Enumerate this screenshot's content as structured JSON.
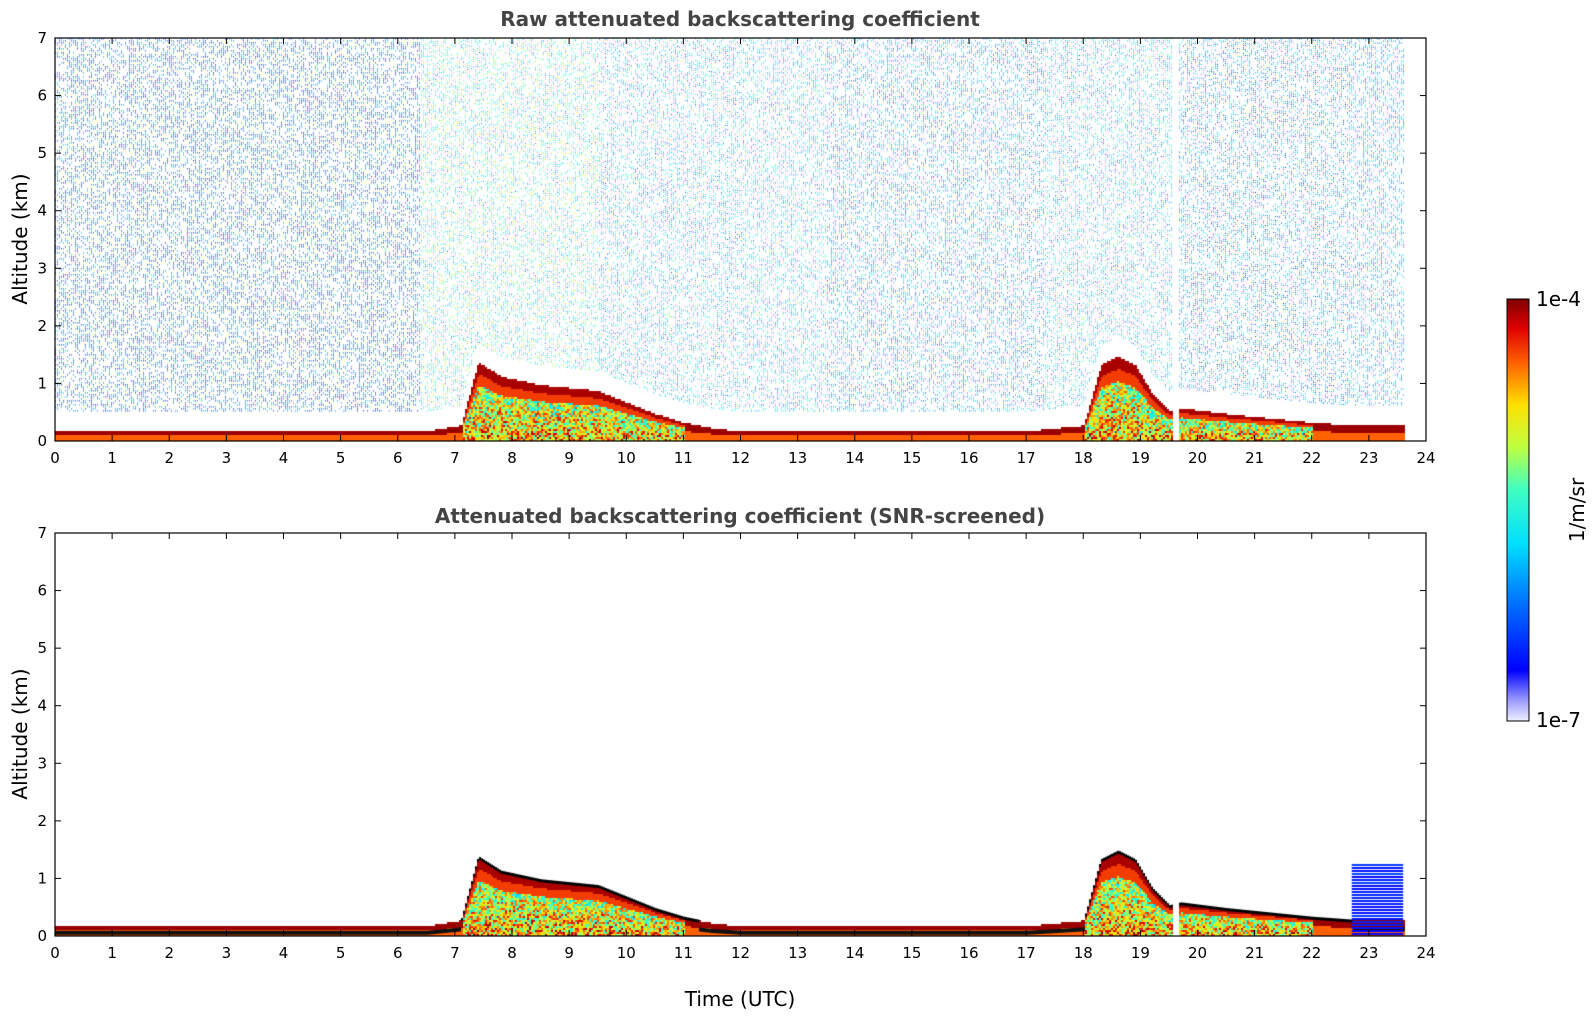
{
  "chart_data": [
    {
      "type": "heatmap",
      "title": "Raw attenuated backscattering coefficient",
      "xlabel": "",
      "ylabel": "Altitude (km)",
      "xlim": [
        0,
        24
      ],
      "ylim": [
        0,
        7
      ],
      "xticks": [
        "0",
        "1",
        "2",
        "3",
        "4",
        "5",
        "6",
        "7",
        "8",
        "9",
        "10",
        "11",
        "12",
        "13",
        "14",
        "15",
        "16",
        "17",
        "18",
        "19",
        "20",
        "21",
        "22",
        "23",
        "24"
      ],
      "yticks": [
        "0",
        "1",
        "2",
        "3",
        "4",
        "5",
        "6",
        "7"
      ],
      "data_gaps_utc": [
        [
          19.55,
          19.65
        ],
        [
          23.6,
          24.0
        ]
      ],
      "noise_level_by_period": [
        {
          "from": 0.0,
          "to": 6.4,
          "level": 0.3
        },
        {
          "from": 6.4,
          "to": 9.5,
          "level": 0.65
        },
        {
          "from": 9.5,
          "to": 13.5,
          "level": 0.55
        },
        {
          "from": 13.5,
          "to": 17.3,
          "level": 0.45
        },
        {
          "from": 17.3,
          "to": 19.55,
          "level": 0.55
        },
        {
          "from": 19.65,
          "to": 23.6,
          "level": 0.45
        }
      ],
      "boundary_layer_top_km": {
        "x": [
          0,
          6.5,
          7.1,
          7.4,
          7.8,
          8.5,
          9.5,
          10.0,
          10.5,
          11.0,
          11.5,
          12.0,
          14.0,
          16.0,
          17.0,
          17.5,
          18.0,
          18.3,
          18.6,
          18.9,
          19.2,
          19.5,
          19.7,
          20.5,
          21.5,
          22.0,
          22.7
        ],
        "y": [
          0.15,
          0.15,
          0.25,
          1.35,
          1.1,
          0.95,
          0.85,
          0.65,
          0.45,
          0.3,
          0.2,
          0.15,
          0.15,
          0.15,
          0.15,
          0.2,
          0.25,
          1.3,
          1.45,
          1.3,
          0.8,
          0.5,
          0.55,
          0.45,
          0.35,
          0.3,
          0.25
        ]
      },
      "colorbar": {
        "min_label": "1e-7",
        "max_label": "1e-4",
        "label": "1/m/sr",
        "scale": "log"
      }
    },
    {
      "type": "heatmap",
      "title": "Attenuated backscattering coefficient (SNR-screened)",
      "xlabel": "Time (UTC)",
      "ylabel": "Altitude (km)",
      "xlim": [
        0,
        24
      ],
      "ylim": [
        0,
        7
      ],
      "xticks": [
        "0",
        "1",
        "2",
        "3",
        "4",
        "5",
        "6",
        "7",
        "8",
        "9",
        "10",
        "11",
        "12",
        "13",
        "14",
        "15",
        "16",
        "17",
        "18",
        "19",
        "20",
        "21",
        "22",
        "23",
        "24"
      ],
      "yticks": [
        "0",
        "1",
        "2",
        "3",
        "4",
        "5",
        "6",
        "7"
      ],
      "data_gaps_utc": [
        [
          19.55,
          19.65
        ],
        [
          23.6,
          24.0
        ]
      ],
      "boundary_layer_top_km": {
        "x": [
          0,
          6.5,
          7.1,
          7.4,
          7.8,
          8.5,
          9.5,
          10.0,
          10.5,
          11.0,
          11.5,
          12.0,
          14.0,
          16.0,
          17.0,
          17.5,
          18.0,
          18.3,
          18.6,
          18.9,
          19.2,
          19.5,
          19.7,
          20.5,
          21.5,
          22.0,
          22.7
        ],
        "y": [
          0.15,
          0.15,
          0.25,
          1.35,
          1.1,
          0.95,
          0.85,
          0.65,
          0.45,
          0.3,
          0.2,
          0.15,
          0.15,
          0.15,
          0.15,
          0.2,
          0.25,
          1.3,
          1.45,
          1.3,
          0.8,
          0.5,
          0.55,
          0.45,
          0.35,
          0.3,
          0.25
        ]
      },
      "late_aerosol_block": {
        "x_from": 22.7,
        "x_to": 23.6,
        "top_km": 1.2
      },
      "colorbar": {
        "min_label": "1e-7",
        "max_label": "1e-4",
        "label": "1/m/sr",
        "scale": "log"
      }
    }
  ]
}
